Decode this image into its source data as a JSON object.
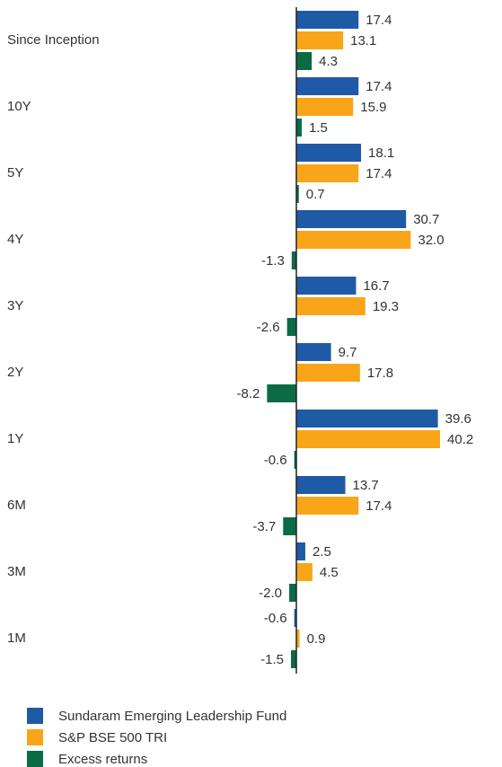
{
  "chart_data": {
    "type": "bar",
    "orientation": "horizontal",
    "categories": [
      "Since Inception",
      "10Y",
      "5Y",
      "4Y",
      "3Y",
      "2Y",
      "1Y",
      "6M",
      "3M",
      "1M"
    ],
    "series": [
      {
        "name": "Sundaram Emerging Leadership Fund",
        "color": "#1f5aa6",
        "values": [
          17.4,
          17.4,
          18.1,
          30.7,
          16.7,
          9.7,
          39.6,
          13.7,
          2.5,
          -0.6
        ],
        "value_labels": [
          "17.4",
          "17.4",
          "18.1",
          "30.7",
          "16.7",
          "9.7",
          "39.6",
          "13.7",
          "2.5",
          "-0.6"
        ]
      },
      {
        "name": "S&P BSE 500 TRI",
        "color": "#f9a51a",
        "values": [
          13.1,
          15.9,
          17.4,
          32.0,
          19.3,
          17.8,
          40.2,
          17.4,
          4.5,
          0.9
        ],
        "value_labels": [
          "13.1",
          "15.9",
          "17.4",
          "32.0",
          "19.3",
          "17.8",
          "40.2",
          "17.4",
          "4.5",
          "0.9"
        ]
      },
      {
        "name": "Excess returns",
        "color": "#0a6b45",
        "values": [
          4.3,
          1.5,
          0.7,
          -1.3,
          -2.6,
          -8.2,
          -0.6,
          -3.7,
          -2.0,
          -1.5
        ],
        "value_labels": [
          "4.3",
          "1.5",
          "0.7",
          "-1.3",
          "-2.6",
          "-8.2",
          "-0.6",
          "-3.7",
          "-2.0",
          "-1.5"
        ]
      }
    ]
  }
}
